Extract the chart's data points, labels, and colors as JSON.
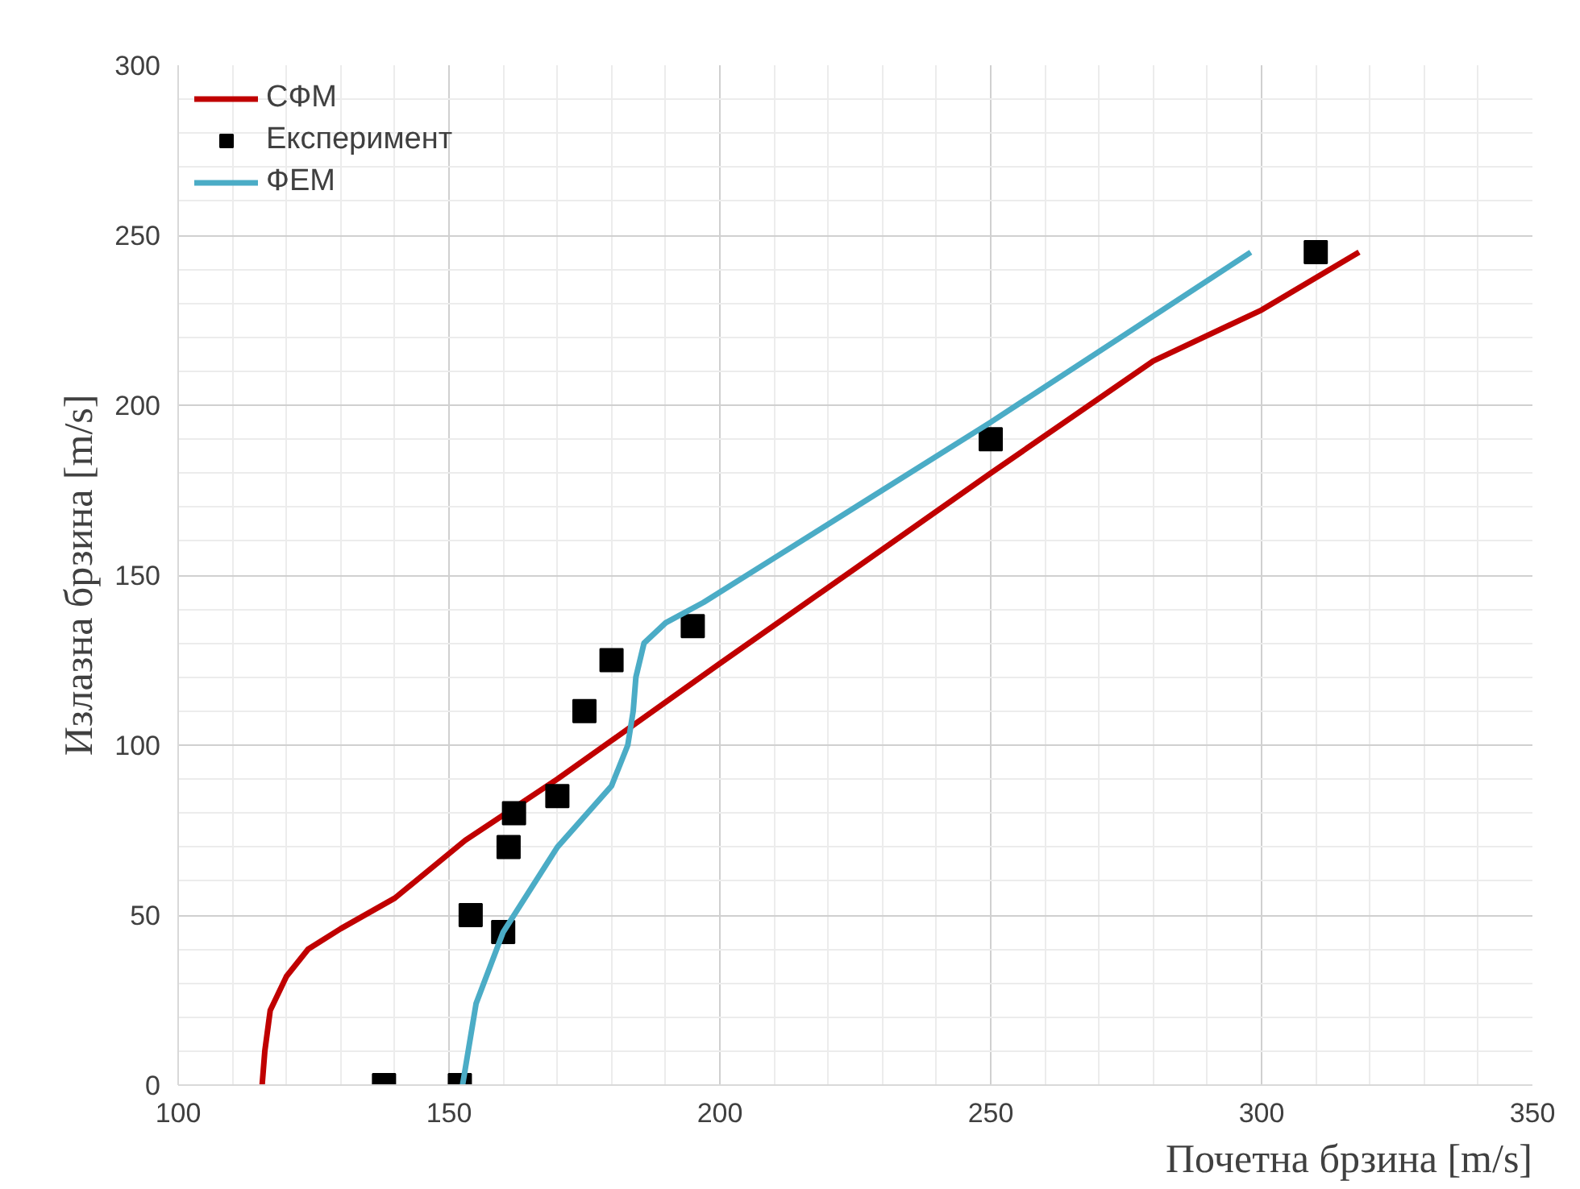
{
  "chart_data": {
    "type": "line",
    "xlabel": "Почетна брзина [m/s]",
    "ylabel": "Излазна брзина [m/s]",
    "xlim": [
      100,
      350
    ],
    "xticks": [
      100,
      150,
      200,
      250,
      300,
      350
    ],
    "ylim": [
      0,
      300
    ],
    "yticks": [
      0,
      50,
      100,
      150,
      200,
      250,
      300
    ],
    "grid": true,
    "legend": "top left",
    "series": [
      {
        "name": "СФМ",
        "color": "#c00000",
        "marker": "none",
        "line_style": "solid",
        "x": [
          115.5,
          116,
          117,
          120,
          124,
          130,
          140,
          153,
          170,
          200,
          225,
          250,
          280,
          300,
          318
        ],
        "values": [
          0,
          10,
          22,
          32,
          40,
          46,
          55,
          72,
          90,
          124,
          152,
          180,
          213,
          228,
          245
        ]
      },
      {
        "name": "Експеримент",
        "type": "scatter",
        "color": "#000000",
        "marker": "square",
        "x": [
          138,
          152,
          154,
          160,
          161,
          162,
          170,
          175,
          180,
          195,
          250,
          310
        ],
        "values": [
          0,
          0,
          50,
          45,
          70,
          80,
          85,
          110,
          125,
          135,
          190,
          245
        ]
      },
      {
        "name": "ФЕМ",
        "color": "#4bacc6",
        "marker": "none",
        "line_style": "solid",
        "x": [
          152.5,
          155,
          160,
          170,
          180,
          183,
          184,
          184.5,
          186,
          190,
          197,
          210,
          230,
          250,
          275,
          298
        ],
        "values": [
          0,
          24,
          45,
          70,
          88,
          100,
          110,
          120,
          130,
          136,
          142,
          155,
          175,
          195,
          221,
          245
        ]
      }
    ]
  }
}
